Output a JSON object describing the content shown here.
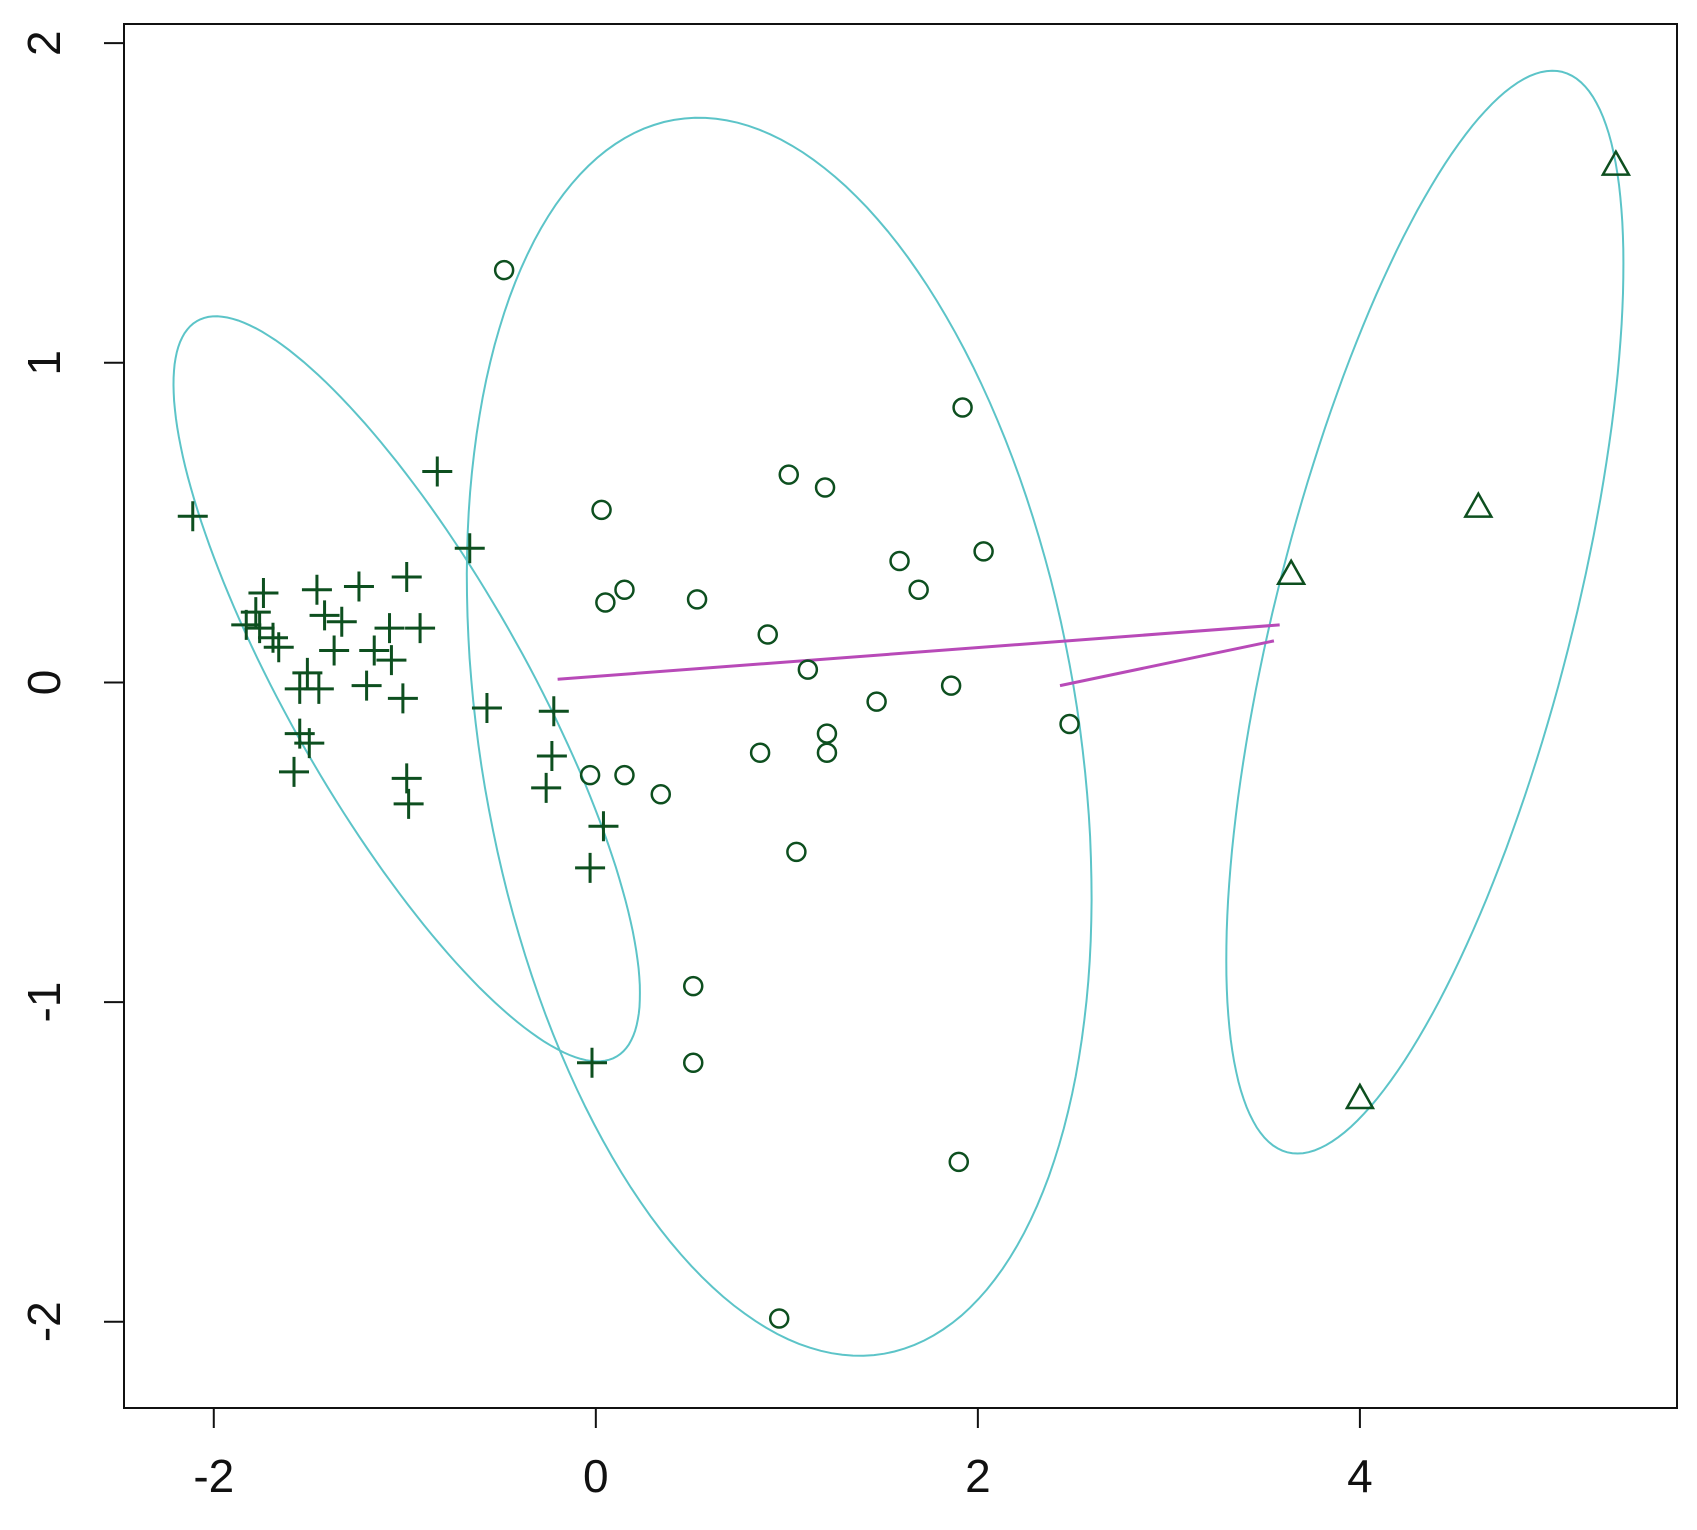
{
  "chart_data": {
    "type": "scatter",
    "xlim": [
      -2.47,
      5.66
    ],
    "ylim": [
      -2.27,
      2.06
    ],
    "xticks": [
      -2,
      0,
      2,
      4
    ],
    "yticks": [
      -2,
      -1,
      0,
      1,
      2
    ],
    "series": [
      {
        "marker": "plus",
        "color": "#0d4f1f",
        "x": [
          -2.11,
          -0.83,
          -0.66,
          -1.74,
          -1.78,
          -1.83,
          -1.76,
          -1.69,
          -1.66,
          -1.46,
          -1.24,
          -0.99,
          -1.42,
          -1.33,
          -1.37,
          -1.16,
          -1.08,
          -0.92,
          -1.07,
          -1.51,
          -1.55,
          -1.45,
          -1.2,
          -1.01,
          -0.57,
          -0.22,
          -1.55,
          -1.5,
          -1.58,
          -0.23,
          -0.99,
          -0.26,
          -0.98,
          0.04,
          -0.03,
          -0.02
        ],
        "y": [
          0.52,
          0.66,
          0.42,
          0.28,
          0.22,
          0.18,
          0.17,
          0.14,
          0.11,
          0.29,
          0.3,
          0.33,
          0.21,
          0.19,
          0.1,
          0.1,
          0.17,
          0.17,
          0.07,
          0.03,
          -0.02,
          -0.02,
          -0.01,
          -0.05,
          -0.08,
          -0.09,
          -0.16,
          -0.19,
          -0.28,
          -0.23,
          -0.3,
          -0.33,
          -0.38,
          -0.45,
          -0.58,
          -1.19
        ]
      },
      {
        "marker": "circle",
        "color": "#0d4f1f",
        "x": [
          -0.48,
          1.92,
          1.01,
          1.2,
          0.03,
          2.03,
          1.59,
          0.15,
          0.05,
          0.53,
          1.69,
          0.9,
          1.11,
          1.86,
          1.47,
          2.48,
          1.21,
          1.21,
          0.86,
          -0.03,
          0.15,
          0.34,
          1.05,
          0.51,
          0.51,
          1.9,
          0.96
        ],
        "y": [
          1.29,
          0.86,
          0.65,
          0.61,
          0.54,
          0.41,
          0.38,
          0.29,
          0.25,
          0.26,
          0.29,
          0.15,
          0.04,
          -0.01,
          -0.06,
          -0.13,
          -0.16,
          -0.22,
          -0.22,
          -0.29,
          -0.29,
          -0.35,
          -0.53,
          -0.95,
          -1.19,
          -1.5,
          -1.99
        ]
      },
      {
        "marker": "triangle",
        "color": "#0d4f1f",
        "x": [
          5.34,
          4.62,
          3.64,
          4.0
        ],
        "y": [
          1.62,
          0.55,
          0.34,
          -1.3
        ]
      }
    ],
    "ellipses": [
      {
        "color": "#5cc4c8",
        "center": [
          -0.99,
          -0.02
        ],
        "axis_a": [
          -1.1,
          1.15
        ],
        "axis_b": [
          0.53,
          0.19
        ]
      },
      {
        "color": "#5cc4c8",
        "center": [
          0.96,
          -0.17
        ],
        "axis_a": [
          -0.55,
          1.93
        ],
        "axis_b": [
          1.54,
          0.16
        ]
      },
      {
        "color": "#5cc4c8",
        "center": [
          4.34,
          0.22
        ],
        "axis_a": [
          0.72,
          1.69
        ],
        "axis_b": [
          0.75,
          -0.115
        ]
      }
    ],
    "segments": [
      {
        "color": "#b84ab8",
        "from": [
          -0.2,
          0.01
        ],
        "to": [
          3.58,
          0.18
        ]
      },
      {
        "color": "#b84ab8",
        "from": [
          2.43,
          -0.01
        ],
        "to": [
          3.55,
          0.13
        ]
      }
    ]
  }
}
